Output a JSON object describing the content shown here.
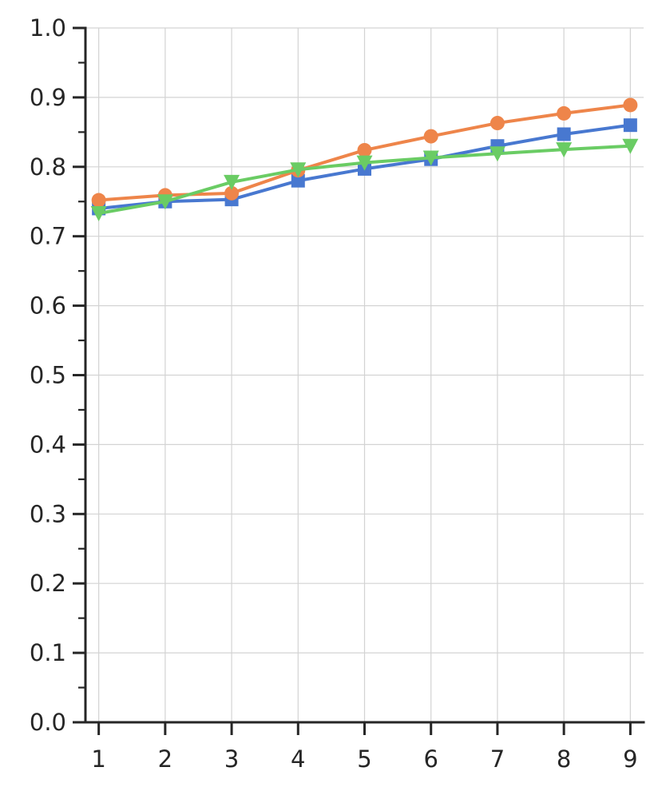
{
  "chart_data": {
    "type": "line",
    "title": "",
    "xlabel": "",
    "ylabel": "",
    "x": [
      1,
      2,
      3,
      4,
      5,
      6,
      7,
      8,
      9
    ],
    "xlim": [
      0.8,
      9.2
    ],
    "ylim": [
      0.0,
      1.0
    ],
    "x_ticks": [
      "1",
      "2",
      "3",
      "4",
      "5",
      "6",
      "7",
      "8",
      "9"
    ],
    "y_ticks": [
      "0.0",
      "0.1",
      "0.2",
      "0.3",
      "0.4",
      "0.5",
      "0.6",
      "0.7",
      "0.8",
      "0.9",
      "1.0"
    ],
    "y_minor_step": 0.05,
    "grid": true,
    "legend": "none",
    "series": [
      {
        "color": "#4878d0",
        "marker": "square",
        "values": [
          0.74,
          0.75,
          0.753,
          0.78,
          0.797,
          0.811,
          0.83,
          0.847,
          0.86
        ]
      },
      {
        "color": "#ee854a",
        "marker": "circle",
        "values": [
          0.752,
          0.759,
          0.762,
          0.795,
          0.824,
          0.844,
          0.863,
          0.877,
          0.889
        ]
      },
      {
        "color": "#6acc64",
        "marker": "triangle-down",
        "values": [
          0.733,
          0.75,
          0.778,
          0.796,
          0.806,
          0.813,
          0.819,
          0.825,
          0.83
        ]
      }
    ]
  }
}
